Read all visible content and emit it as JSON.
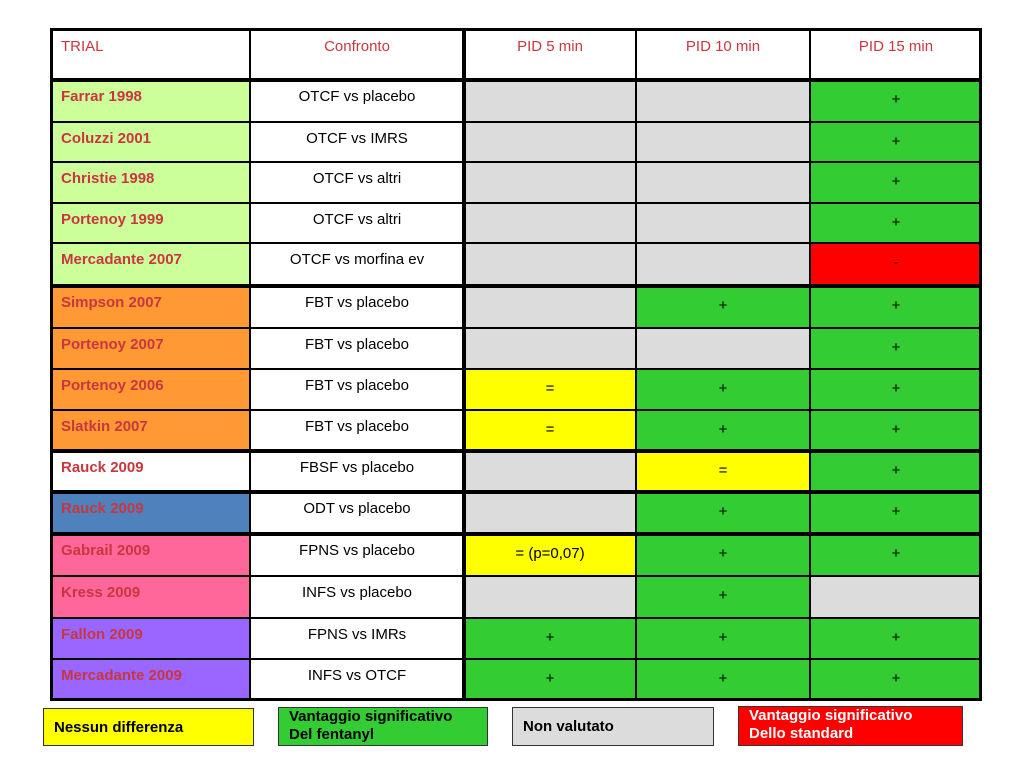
{
  "colors": {
    "accent_text": "#c8373f",
    "grey": "#dcdcdc",
    "green": "#33cc33",
    "yellow": "#ffff00",
    "red": "#ff0000",
    "light_green": "#ccff99",
    "orange": "#ff9933",
    "blue": "#4f81bd",
    "pink": "#ff6699",
    "purple": "#9966ff",
    "white": "#ffffff"
  },
  "table": {
    "headers": [
      "TRIAL",
      "Confronto",
      "PID 5 min",
      "PID 10 min",
      "PID 15 min"
    ],
    "rows": [
      {
        "trial": "Farrar 1998",
        "group": "light_green",
        "confronto": "OTCF vs placebo",
        "cells": [
          {
            "v": "",
            "c": "grey"
          },
          {
            "v": "",
            "c": "grey"
          },
          {
            "v": "+",
            "c": "green"
          }
        ]
      },
      {
        "trial": "Coluzzi 2001",
        "group": "light_green",
        "confronto": "OTCF vs IMRS",
        "cells": [
          {
            "v": "",
            "c": "grey"
          },
          {
            "v": "",
            "c": "grey"
          },
          {
            "v": "+",
            "c": "green"
          }
        ]
      },
      {
        "trial": "Christie 1998",
        "group": "light_green",
        "confronto": "OTCF vs altri",
        "cells": [
          {
            "v": "",
            "c": "grey"
          },
          {
            "v": "",
            "c": "grey"
          },
          {
            "v": "+",
            "c": "green"
          }
        ]
      },
      {
        "trial": "Portenoy 1999",
        "group": "light_green",
        "confronto": "OTCF vs altri",
        "cells": [
          {
            "v": "",
            "c": "grey"
          },
          {
            "v": "",
            "c": "grey"
          },
          {
            "v": "+",
            "c": "green"
          }
        ]
      },
      {
        "trial": "Mercadante 2007",
        "group": "light_green",
        "confronto": "OTCF vs morfina ev",
        "cells": [
          {
            "v": "",
            "c": "grey"
          },
          {
            "v": "",
            "c": "grey"
          },
          {
            "v": "-",
            "c": "red"
          }
        ]
      },
      {
        "trial": "Simpson 2007",
        "group": "orange",
        "confronto": "FBT vs placebo",
        "cells": [
          {
            "v": "",
            "c": "grey"
          },
          {
            "v": "+",
            "c": "green"
          },
          {
            "v": "+",
            "c": "green"
          }
        ]
      },
      {
        "trial": "Portenoy 2007",
        "group": "orange",
        "confronto": "FBT vs placebo",
        "cells": [
          {
            "v": "",
            "c": "grey"
          },
          {
            "v": "",
            "c": "grey"
          },
          {
            "v": "+",
            "c": "green"
          }
        ]
      },
      {
        "trial": "Portenoy 2006",
        "group": "orange",
        "confronto": "FBT vs placebo",
        "cells": [
          {
            "v": "=",
            "c": "yellow"
          },
          {
            "v": "+",
            "c": "green"
          },
          {
            "v": "+",
            "c": "green"
          }
        ]
      },
      {
        "trial": "Slatkin 2007",
        "group": "orange",
        "confronto": "FBT vs placebo",
        "cells": [
          {
            "v": "=",
            "c": "yellow"
          },
          {
            "v": "+",
            "c": "green"
          },
          {
            "v": "+",
            "c": "green"
          }
        ]
      },
      {
        "trial": "Rauck 2009",
        "group": "white",
        "confronto": "FBSF vs placebo",
        "cells": [
          {
            "v": "",
            "c": "grey"
          },
          {
            "v": "=",
            "c": "yellow"
          },
          {
            "v": "+",
            "c": "green"
          }
        ]
      },
      {
        "trial": "Rauck 2009",
        "group": "blue",
        "confronto": "ODT vs placebo",
        "cells": [
          {
            "v": "",
            "c": "grey"
          },
          {
            "v": "+",
            "c": "green"
          },
          {
            "v": "+",
            "c": "green"
          }
        ]
      },
      {
        "trial": "Gabrail 2009",
        "group": "pink",
        "confronto": "FPNS vs placebo",
        "cells": [
          {
            "v": "= (p=0,07)",
            "c": "yellow"
          },
          {
            "v": "+",
            "c": "green"
          },
          {
            "v": "+",
            "c": "green"
          }
        ]
      },
      {
        "trial": "Kress 2009",
        "group": "pink",
        "confronto": "INFS vs placebo",
        "cells": [
          {
            "v": "",
            "c": "grey"
          },
          {
            "v": "+",
            "c": "green"
          },
          {
            "v": "",
            "c": "grey"
          }
        ]
      },
      {
        "trial": "Fallon 2009",
        "group": "purple",
        "confronto": "FPNS vs IMRs",
        "cells": [
          {
            "v": "+",
            "c": "green"
          },
          {
            "v": "+",
            "c": "green"
          },
          {
            "v": "+",
            "c": "green"
          }
        ]
      },
      {
        "trial": "Mercadante 2009",
        "group": "purple",
        "confronto": "INFS vs OTCF",
        "cells": [
          {
            "v": "+",
            "c": "green"
          },
          {
            "v": "+",
            "c": "green"
          },
          {
            "v": "+",
            "c": "green"
          }
        ]
      }
    ]
  },
  "legend": [
    {
      "text": "Nessun differenza",
      "c": "yellow",
      "text_color": "#000000"
    },
    {
      "text": "Vantaggio significativo\nDel fentanyl",
      "c": "green",
      "text_color": "#000000"
    },
    {
      "text": "Non valutato",
      "c": "grey",
      "text_color": "#000000"
    },
    {
      "text": "Vantaggio significativo\nDello standard",
      "c": "red",
      "text_color": "#ffffff"
    }
  ]
}
